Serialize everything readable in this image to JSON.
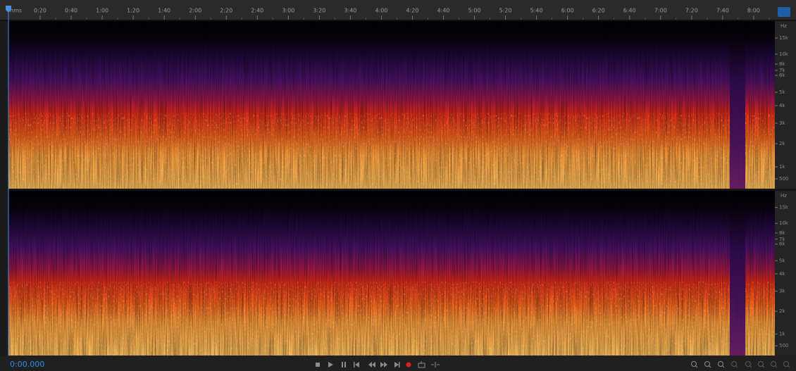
{
  "ruler": {
    "unit": "hms",
    "labels": [
      "0:20",
      "0:40",
      "1:00",
      "1:20",
      "1:40",
      "2:00",
      "2:20",
      "2:40",
      "3:00",
      "3:20",
      "3:40",
      "4:00",
      "4:20",
      "4:40",
      "5:00",
      "5:20",
      "5:40",
      "6:00",
      "6:20",
      "6:40",
      "7:00",
      "7:20",
      "7:40",
      "8:00"
    ]
  },
  "channels": [
    {
      "unit": "Hz",
      "freq_labels": [
        "15k",
        "10k",
        "8k",
        "7k",
        "6k",
        "5k",
        "4k",
        "3k",
        "2k",
        "1k",
        "500"
      ]
    },
    {
      "unit": "Hz",
      "freq_labels": [
        "15k",
        "10k",
        "8k",
        "7k",
        "6k",
        "5k",
        "4k",
        "3k",
        "2k",
        "1k",
        "500"
      ]
    }
  ],
  "time_display": "0:00.000"
}
